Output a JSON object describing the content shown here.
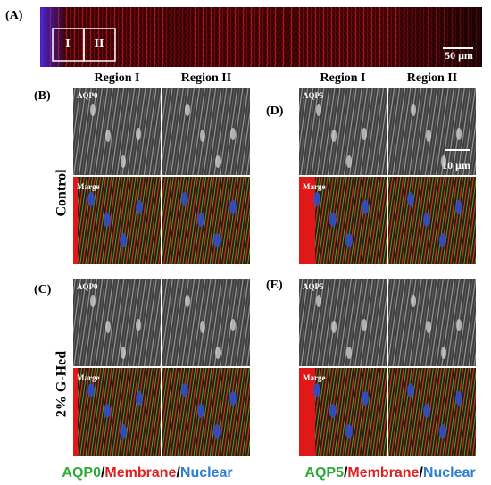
{
  "panel_a": {
    "label": "(A)",
    "regions": [
      "I",
      "II"
    ],
    "scale_bar": "50 μm"
  },
  "panels": [
    {
      "label": "(B)",
      "columns": [
        "Region I",
        "Region II"
      ],
      "top_label": "AQP0",
      "bottom_label": "Marge",
      "row_label": "Control"
    },
    {
      "label": "(D)",
      "columns": [
        "Region I",
        "Region II"
      ],
      "top_label": "AQP5",
      "bottom_label": "Marge",
      "scale_bar": "10 μm"
    },
    {
      "label": "(C)",
      "top_label": "AQP0",
      "bottom_label": "Marge",
      "row_label": "2% G-Hed"
    },
    {
      "label": "(E)",
      "top_label": "AQP5",
      "bottom_label": "Marge"
    }
  ],
  "legends": [
    {
      "parts": [
        {
          "text": "AQP0",
          "color": "#2eaa3a"
        },
        {
          "text": "/",
          "color": "#000000"
        },
        {
          "text": "Membrane",
          "color": "#e02020"
        },
        {
          "text": "/",
          "color": "#000000"
        },
        {
          "text": "Nuclear",
          "color": "#2f7fd0"
        }
      ]
    },
    {
      "parts": [
        {
          "text": "AQP5",
          "color": "#2eaa3a"
        },
        {
          "text": "/",
          "color": "#000000"
        },
        {
          "text": "Membrane",
          "color": "#e02020"
        },
        {
          "text": "/",
          "color": "#000000"
        },
        {
          "text": "Nuclear",
          "color": "#2f7fd0"
        }
      ]
    }
  ]
}
